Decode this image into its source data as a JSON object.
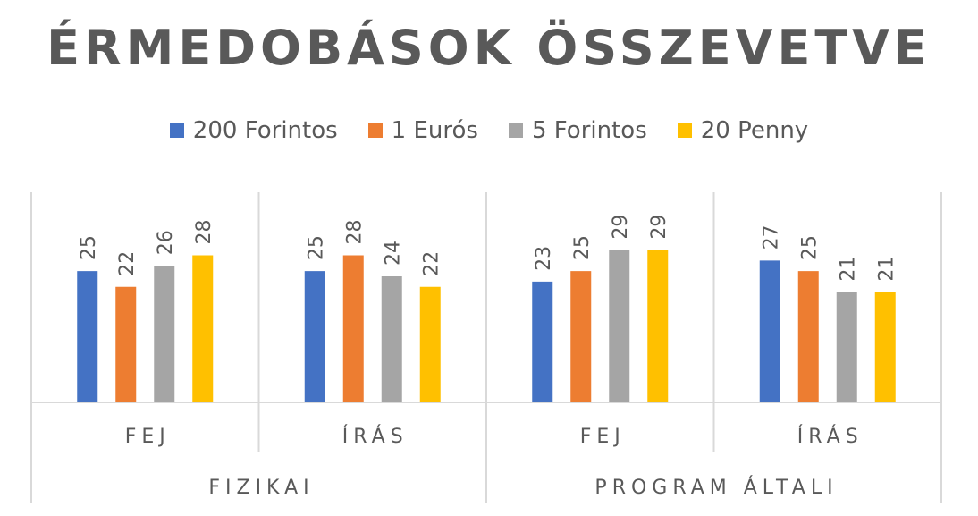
{
  "chart_data": {
    "type": "bar",
    "title": "ÉRMEDOBÁSOK ÖSSZEVETVE",
    "categories": [
      "FEJ",
      "ÍRÁS",
      "FEJ",
      "ÍRÁS"
    ],
    "groups": [
      "FIZIKAI",
      "PROGRAM ÁLTALI"
    ],
    "series": [
      {
        "name": "200 Forintos",
        "color": "#4472C4",
        "values": [
          25,
          25,
          23,
          27
        ]
      },
      {
        "name": "1 Eurós",
        "color": "#ED7D31",
        "values": [
          22,
          28,
          25,
          25
        ]
      },
      {
        "name": "5 Forintos",
        "color": "#A5A5A5",
        "values": [
          26,
          24,
          29,
          21
        ]
      },
      {
        "name": "20 Penny",
        "color": "#FFC000",
        "values": [
          28,
          22,
          29,
          21
        ]
      }
    ],
    "data_labels": true,
    "legend": "top",
    "ylim": [
      0,
      40
    ]
  }
}
